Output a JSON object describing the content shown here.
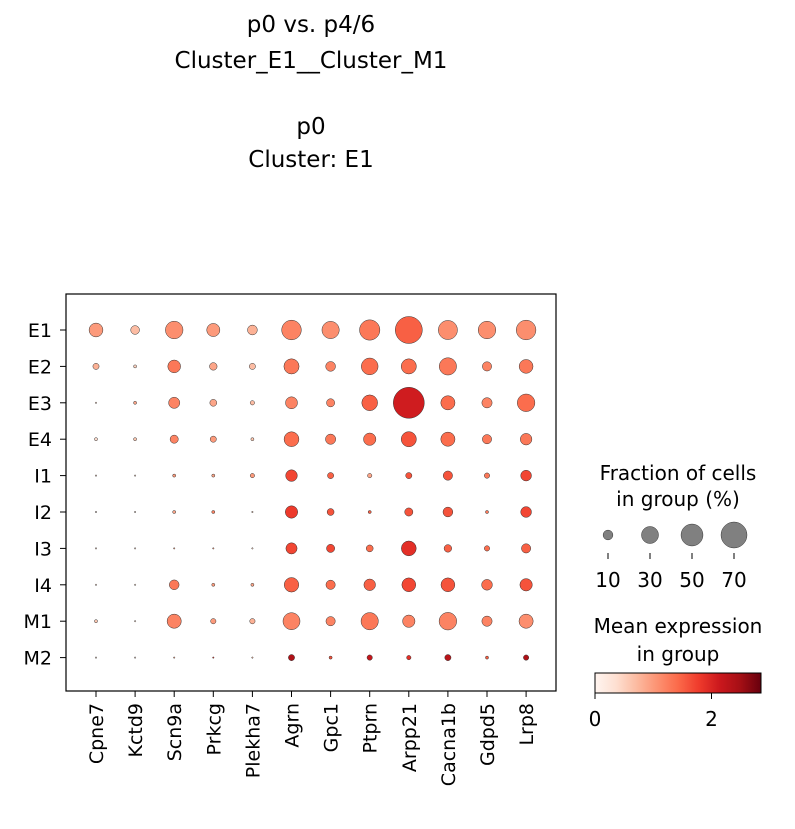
{
  "chart_data": {
    "type": "dotplot",
    "title": [
      "p0 vs. p4/6",
      "Cluster_E1__Cluster_M1",
      "",
      "p0",
      "Cluster: E1"
    ],
    "genes": [
      "Cpne7",
      "Kctd9",
      "Scn9a",
      "Prkcg",
      "Plekha7",
      "Agrn",
      "Gpc1",
      "Ptprn",
      "Arpp21",
      "Cacna1b",
      "Gdpd5",
      "Lrp8"
    ],
    "groups": [
      "E1",
      "E2",
      "E3",
      "E4",
      "I1",
      "I2",
      "I3",
      "I4",
      "M1",
      "M2"
    ],
    "fraction": [
      [
        20,
        8,
        32,
        18,
        10,
        40,
        31,
        43,
        76,
        38,
        32,
        40
      ],
      [
        4,
        1,
        17,
        6,
        4,
        24,
        10,
        29,
        24,
        31,
        9,
        20
      ],
      [
        0,
        1,
        13,
        5,
        2,
        15,
        7,
        26,
        100,
        21,
        11,
        32
      ],
      [
        1,
        1,
        7,
        4,
        1,
        23,
        11,
        16,
        24,
        21,
        9,
        14
      ],
      [
        0,
        0,
        1,
        1,
        2,
        14,
        4,
        2,
        4,
        9,
        3,
        12
      ],
      [
        0,
        0,
        1,
        1,
        0,
        16,
        5,
        1,
        7,
        10,
        1,
        12
      ],
      [
        0,
        0,
        0,
        0,
        0,
        13,
        7,
        5,
        23,
        6,
        3,
        9
      ],
      [
        0,
        0,
        10,
        1,
        1,
        22,
        9,
        14,
        20,
        20,
        12,
        16
      ],
      [
        1,
        0,
        21,
        3,
        3,
        30,
        9,
        31,
        16,
        32,
        11,
        21
      ],
      [
        0,
        0,
        0,
        0,
        0,
        4,
        1,
        3,
        2,
        4,
        1,
        3
      ]
    ],
    "expression": [
      [
        1.0,
        0.7,
        1.1,
        1.0,
        0.8,
        1.2,
        1.1,
        1.3,
        1.5,
        1.1,
        1.1,
        1.1
      ],
      [
        0.8,
        0.5,
        1.3,
        0.9,
        0.7,
        1.3,
        1.2,
        1.4,
        1.4,
        1.3,
        1.2,
        1.3
      ],
      [
        0.5,
        0.9,
        1.2,
        0.9,
        0.7,
        1.2,
        1.2,
        1.5,
        2.1,
        1.4,
        1.2,
        1.4
      ],
      [
        0.4,
        0.6,
        1.2,
        1.0,
        0.6,
        1.4,
        1.3,
        1.4,
        1.6,
        1.4,
        1.3,
        1.3
      ],
      [
        0.4,
        0.4,
        1.0,
        0.9,
        1.0,
        1.7,
        1.5,
        0.9,
        1.6,
        1.6,
        1.3,
        1.7
      ],
      [
        0.3,
        0.3,
        0.9,
        1.2,
        0.5,
        1.8,
        1.6,
        1.5,
        1.6,
        1.6,
        1.3,
        1.7
      ],
      [
        0.4,
        0.4,
        1.0,
        1.1,
        0.5,
        1.7,
        1.7,
        1.4,
        1.9,
        1.5,
        1.4,
        1.5
      ],
      [
        0.4,
        0.4,
        1.3,
        1.0,
        0.9,
        1.5,
        1.4,
        1.5,
        1.7,
        1.6,
        1.4,
        1.6
      ],
      [
        0.6,
        0.4,
        1.2,
        1.0,
        0.8,
        1.2,
        1.2,
        1.3,
        1.2,
        1.2,
        1.2,
        1.1
      ],
      [
        0.3,
        0.3,
        0.9,
        1.9,
        0.7,
        2.4,
        1.6,
        2.2,
        1.9,
        2.3,
        1.5,
        2.4
      ]
    ],
    "size_legend": {
      "title": [
        "Fraction of cells",
        "in group (%)"
      ],
      "values": [
        10,
        30,
        50,
        70
      ],
      "labels": [
        "10",
        "30",
        "50",
        "70"
      ]
    },
    "color_legend": {
      "title": [
        "Mean expression",
        "in group"
      ],
      "colormap": "Reds",
      "range": [
        0,
        2.85
      ],
      "ticks": [
        0,
        2
      ],
      "tick_labels": [
        "0",
        "2"
      ]
    },
    "colors": {
      "dot_edge": "#333333",
      "size_legend_dot": "#808080",
      "colormap_stops": [
        "#fff5f0",
        "#fee0d2",
        "#fcbba1",
        "#fc9272",
        "#fb6a4a",
        "#ef3b2c",
        "#cb181d",
        "#a50f15",
        "#67000d"
      ]
    }
  }
}
